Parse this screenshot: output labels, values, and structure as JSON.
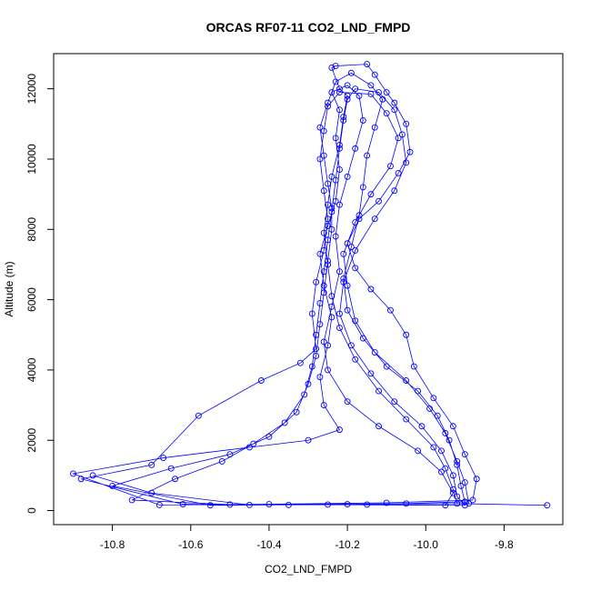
{
  "chart_data": {
    "type": "line",
    "title": "ORCAS RF07-11 CO2_LND_FMPD",
    "xlabel": "CO2_LND_FMPD",
    "ylabel": "Altitude (m)",
    "xlim": [
      -10.95,
      -9.65
    ],
    "ylim": [
      -400,
      13000
    ],
    "xticks": [
      -10.8,
      -10.6,
      -10.4,
      -10.2,
      -10.0,
      -9.8
    ],
    "xtick_labels": [
      "-10.8",
      "-10.6",
      "-10.4",
      "-10.2",
      "-10.0",
      "-9.8"
    ],
    "yticks": [
      0,
      2000,
      4000,
      6000,
      8000,
      10000,
      12000
    ],
    "ytick_labels": [
      "0",
      "2000",
      "4000",
      "6000",
      "8000",
      "10000",
      "12000"
    ],
    "grid": false,
    "series_color": "#0000ff",
    "marker": "open-circle",
    "series": [
      {
        "name": "",
        "points": [
          [
            -9.69,
            150
          ],
          [
            -9.92,
            200
          ],
          [
            -9.93,
            600
          ],
          [
            -9.95,
            1200
          ],
          [
            -9.98,
            1800
          ],
          [
            -10.05,
            2600
          ],
          [
            -10.12,
            3400
          ],
          [
            -10.18,
            4300
          ],
          [
            -10.22,
            5200
          ],
          [
            -10.24,
            6100
          ],
          [
            -10.25,
            7000
          ],
          [
            -10.26,
            7900
          ],
          [
            -10.25,
            8700
          ],
          [
            -10.24,
            9500
          ],
          [
            -10.22,
            10400
          ],
          [
            -10.21,
            11200
          ],
          [
            -10.2,
            11800
          ],
          [
            -10.22,
            12000
          ],
          [
            -10.24,
            12600
          ],
          [
            -10.23,
            12650
          ],
          [
            -10.15,
            12700
          ],
          [
            -10.13,
            12400
          ],
          [
            -10.1,
            11900
          ],
          [
            -10.08,
            11600
          ],
          [
            -10.05,
            11000
          ],
          [
            -10.04,
            10200
          ],
          [
            -10.07,
            9600
          ],
          [
            -10.12,
            8800
          ],
          [
            -10.17,
            8300
          ],
          [
            -10.2,
            7600
          ],
          [
            -10.18,
            6900
          ],
          [
            -10.14,
            6300
          ],
          [
            -10.09,
            5700
          ],
          [
            -10.05,
            5000
          ],
          [
            -10.03,
            4100
          ],
          [
            -9.98,
            3200
          ],
          [
            -9.93,
            2400
          ],
          [
            -9.9,
            1600
          ],
          [
            -9.87,
            900
          ],
          [
            -9.88,
            300
          ],
          [
            -10.1,
            220
          ],
          [
            -10.4,
            180
          ],
          [
            -10.68,
            160
          ],
          [
            -10.9,
            1050
          ],
          [
            -10.67,
            1500
          ],
          [
            -10.45,
            1800
          ],
          [
            -10.3,
            2000
          ],
          [
            -10.22,
            2300
          ],
          [
            -10.26,
            3000
          ],
          [
            -10.27,
            3800
          ],
          [
            -10.25,
            4700
          ],
          [
            -10.24,
            5500
          ],
          [
            -10.26,
            6400
          ],
          [
            -10.27,
            7300
          ],
          [
            -10.25,
            8100
          ],
          [
            -10.23,
            8800
          ],
          [
            -10.22,
            9700
          ],
          [
            -10.23,
            10600
          ],
          [
            -10.22,
            11400
          ],
          [
            -10.24,
            11900
          ],
          [
            -10.2,
            12100
          ],
          [
            -10.17,
            11800
          ],
          [
            -10.16,
            11100
          ],
          [
            -10.18,
            10300
          ],
          [
            -10.2,
            9500
          ],
          [
            -10.22,
            8700
          ],
          [
            -10.23,
            7800
          ],
          [
            -10.22,
            6800
          ],
          [
            -10.24,
            5800
          ],
          [
            -10.26,
            4800
          ],
          [
            -10.25,
            4000
          ],
          [
            -10.2,
            3100
          ],
          [
            -10.12,
            2400
          ],
          [
            -10.02,
            1700
          ],
          [
            -9.96,
            1100
          ],
          [
            -9.93,
            500
          ],
          [
            -9.95,
            150
          ],
          [
            -10.25,
            170
          ],
          [
            -10.55,
            150
          ],
          [
            -10.8,
            700
          ],
          [
            -10.65,
            1200
          ],
          [
            -10.5,
            1600
          ],
          [
            -10.4,
            2100
          ],
          [
            -10.33,
            2800
          ],
          [
            -10.3,
            3600
          ],
          [
            -10.28,
            4400
          ],
          [
            -10.27,
            5300
          ],
          [
            -10.26,
            6200
          ],
          [
            -10.25,
            7100
          ],
          [
            -10.24,
            8000
          ],
          [
            -10.24,
            8600
          ],
          [
            -10.25,
            9300
          ],
          [
            -10.26,
            10100
          ],
          [
            -10.27,
            10900
          ],
          [
            -10.25,
            11600
          ],
          [
            -10.23,
            12200
          ],
          [
            -10.19,
            12450
          ],
          [
            -10.14,
            12100
          ],
          [
            -10.11,
            11700
          ],
          [
            -10.13,
            10900
          ],
          [
            -10.15,
            10100
          ],
          [
            -10.16,
            9200
          ],
          [
            -10.17,
            8400
          ],
          [
            -10.19,
            7500
          ],
          [
            -10.21,
            6600
          ],
          [
            -10.2,
            5700
          ],
          [
            -10.16,
            4900
          ],
          [
            -10.1,
            4100
          ],
          [
            -10.02,
            3400
          ],
          [
            -9.97,
            2700
          ],
          [
            -9.94,
            2000
          ],
          [
            -9.92,
            1300
          ],
          [
            -9.91,
            700
          ],
          [
            -9.9,
            250
          ],
          [
            -10.05,
            200
          ],
          [
            -10.35,
            160
          ],
          [
            -10.62,
            180
          ],
          [
            -10.88,
            900
          ],
          [
            -10.7,
            1300
          ],
          [
            -10.58,
            2700
          ],
          [
            -10.42,
            3700
          ],
          [
            -10.32,
            4200
          ],
          [
            -10.28,
            4600
          ],
          [
            -10.29,
            5600
          ],
          [
            -10.28,
            6500
          ],
          [
            -10.26,
            7400
          ],
          [
            -10.25,
            8300
          ],
          [
            -10.26,
            9100
          ],
          [
            -10.27,
            10000
          ],
          [
            -10.26,
            10800
          ],
          [
            -10.25,
            11500
          ],
          [
            -10.22,
            11900
          ],
          [
            -10.14,
            11850
          ],
          [
            -10.1,
            11300
          ],
          [
            -10.07,
            10600
          ],
          [
            -10.09,
            9800
          ],
          [
            -10.14,
            9000
          ],
          [
            -10.18,
            8200
          ],
          [
            -10.21,
            7300
          ],
          [
            -10.2,
            6400
          ],
          [
            -10.18,
            5400
          ],
          [
            -10.13,
            4500
          ],
          [
            -10.05,
            3700
          ],
          [
            -9.99,
            2900
          ],
          [
            -9.95,
            2200
          ],
          [
            -9.92,
            1400
          ],
          [
            -9.9,
            800
          ],
          [
            -9.89,
            200
          ],
          [
            -10.2,
            180
          ],
          [
            -10.5,
            170
          ],
          [
            -10.75,
            300
          ],
          [
            -10.64,
            900
          ],
          [
            -10.52,
            1400
          ],
          [
            -10.44,
            1900
          ],
          [
            -10.36,
            2500
          ],
          [
            -10.31,
            3300
          ],
          [
            -10.29,
            4100
          ],
          [
            -10.28,
            5000
          ],
          [
            -10.27,
            5900
          ],
          [
            -10.26,
            6800
          ],
          [
            -10.25,
            7700
          ],
          [
            -10.24,
            8500
          ],
          [
            -10.23,
            9400
          ],
          [
            -10.22,
            10300
          ],
          [
            -10.21,
            11100
          ],
          [
            -10.2,
            11700
          ],
          [
            -10.18,
            12000
          ],
          [
            -10.12,
            11900
          ],
          [
            -10.08,
            11400
          ],
          [
            -10.06,
            10700
          ],
          [
            -10.05,
            9900
          ],
          [
            -10.08,
            9100
          ],
          [
            -10.13,
            8300
          ],
          [
            -10.18,
            7400
          ],
          [
            -10.21,
            6500
          ],
          [
            -10.22,
            5600
          ],
          [
            -10.19,
            4700
          ],
          [
            -10.14,
            3900
          ],
          [
            -10.08,
            3100
          ],
          [
            -10.01,
            2400
          ],
          [
            -9.96,
            1700
          ],
          [
            -9.93,
            1000
          ],
          [
            -9.92,
            400
          ],
          [
            -9.9,
            150
          ],
          [
            -10.15,
            170
          ],
          [
            -10.45,
            160
          ],
          [
            -10.7,
            500
          ],
          [
            -10.85,
            1000
          ]
        ]
      }
    ]
  }
}
